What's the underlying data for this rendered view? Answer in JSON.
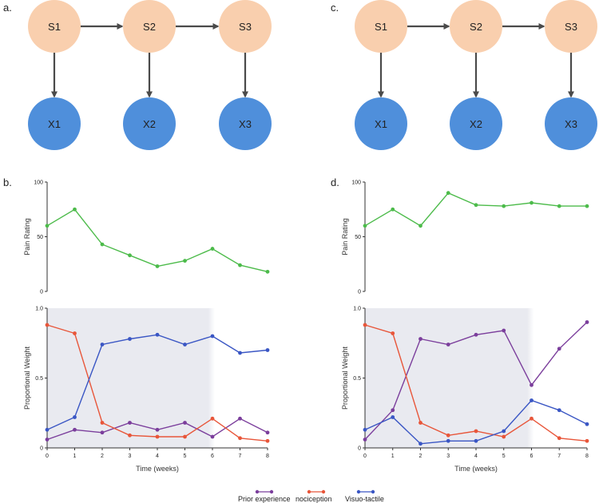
{
  "colors": {
    "state_fill": "#f9cfae",
    "obs_fill": "#4f8fdb",
    "arrow": "#4a4a4a",
    "pain": "#4cbb4a",
    "prior": "#7b3e9c",
    "nociception": "#e8563a",
    "visuo": "#3a56c4",
    "shade": "#e9eaf0",
    "axis": "#333333"
  },
  "panels": {
    "a": "a.",
    "b": "b.",
    "c": "c.",
    "d": "d."
  },
  "diagrams": [
    {
      "states": [
        "S1",
        "S2",
        "S3"
      ],
      "observations": [
        "X1",
        "X2",
        "X3"
      ]
    },
    {
      "states": [
        "S1",
        "S2",
        "S3"
      ],
      "observations": [
        "X1",
        "X2",
        "X3"
      ]
    }
  ],
  "legend": {
    "prior": "Prior experience",
    "nociception": "nociception",
    "visuo": "Visuo-tactile"
  },
  "chart_data": [
    {
      "type": "line",
      "panel": "b",
      "ylabel": "Pain Rating",
      "x": [
        0,
        1,
        2,
        3,
        4,
        5,
        6,
        7,
        8
      ],
      "ylim": [
        0,
        100
      ],
      "yticks": [
        "0",
        "50",
        "100"
      ],
      "series": [
        {
          "name": "Pain Rating",
          "values": [
            60,
            75,
            43,
            33,
            23,
            28,
            39,
            24,
            18
          ]
        }
      ]
    },
    {
      "type": "line",
      "panel": "b",
      "xlabel": "Time (weeks)",
      "ylabel": "Proportional  Weight",
      "x": [
        0,
        1,
        2,
        3,
        4,
        5,
        6,
        7,
        8
      ],
      "xticks": [
        "0",
        "1",
        "2",
        "3",
        "4",
        "5",
        "6",
        "7",
        "8"
      ],
      "ylim": [
        0,
        1
      ],
      "yticks": [
        "0",
        "0.5",
        "1.0"
      ],
      "shaded_x": [
        0,
        6
      ],
      "series": [
        {
          "name": "Prior experience",
          "values": [
            0.06,
            0.13,
            0.11,
            0.18,
            0.13,
            0.18,
            0.08,
            0.21,
            0.11
          ]
        },
        {
          "name": "nociception",
          "values": [
            0.88,
            0.82,
            0.18,
            0.09,
            0.08,
            0.08,
            0.21,
            0.07,
            0.05
          ]
        },
        {
          "name": "Visuo-tactile",
          "values": [
            0.13,
            0.22,
            0.74,
            0.78,
            0.81,
            0.74,
            0.8,
            0.68,
            0.7
          ]
        }
      ]
    },
    {
      "type": "line",
      "panel": "d",
      "ylabel": "Pain Rating",
      "x": [
        0,
        1,
        2,
        3,
        4,
        5,
        6,
        7,
        8
      ],
      "ylim": [
        0,
        100
      ],
      "yticks": [
        "0",
        "50",
        "100"
      ],
      "series": [
        {
          "name": "Pain Rating",
          "values": [
            60,
            75,
            60,
            90,
            79,
            78,
            81,
            78,
            78
          ]
        }
      ]
    },
    {
      "type": "line",
      "panel": "d",
      "xlabel": "Time (weeks)",
      "ylabel": "Proportional  Weight",
      "x": [
        0,
        1,
        2,
        3,
        4,
        5,
        6,
        7,
        8
      ],
      "xticks": [
        "0",
        "1",
        "2",
        "3",
        "4",
        "5",
        "6",
        "7",
        "8"
      ],
      "ylim": [
        0,
        1
      ],
      "yticks": [
        "0",
        "0.5",
        "1.0"
      ],
      "shaded_x": [
        0,
        6
      ],
      "series": [
        {
          "name": "Prior experience",
          "values": [
            0.06,
            0.27,
            0.78,
            0.74,
            0.81,
            0.84,
            0.45,
            0.71,
            0.9
          ]
        },
        {
          "name": "nociception",
          "values": [
            0.88,
            0.82,
            0.18,
            0.09,
            0.12,
            0.08,
            0.21,
            0.07,
            0.05
          ]
        },
        {
          "name": "Visuo-tactile",
          "values": [
            0.13,
            0.22,
            0.03,
            0.05,
            0.05,
            0.12,
            0.34,
            0.27,
            0.17
          ]
        }
      ]
    }
  ]
}
